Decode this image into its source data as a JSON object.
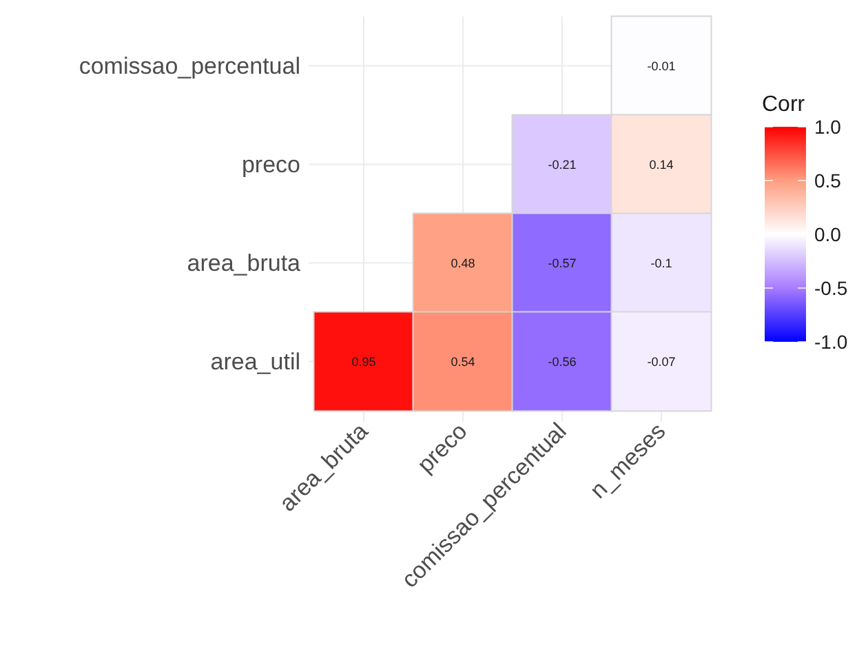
{
  "chart_data": {
    "type": "heatmap",
    "legend_title": "Corr",
    "categories": [
      "area_bruta",
      "preco",
      "comissao_percentual",
      "n_meses"
    ],
    "y_categories": [
      "comissao_percentual",
      "preco",
      "area_bruta",
      "area_util"
    ],
    "cells": [
      [
        null,
        null,
        null,
        -0.01
      ],
      [
        null,
        null,
        -0.21,
        0.14
      ],
      [
        null,
        0.48,
        -0.57,
        -0.1
      ],
      [
        0.95,
        0.54,
        -0.56,
        -0.07
      ]
    ],
    "clim": [
      -1,
      1
    ],
    "cticks": [
      {
        "value": 1,
        "label": "1.0"
      },
      {
        "value": 0.5,
        "label": "0.5"
      },
      {
        "value": 0,
        "label": "0.0"
      },
      {
        "value": -0.5,
        "label": "-0.5"
      },
      {
        "value": -1,
        "label": "-1.0"
      }
    ],
    "data_labels": true,
    "grid": true
  }
}
